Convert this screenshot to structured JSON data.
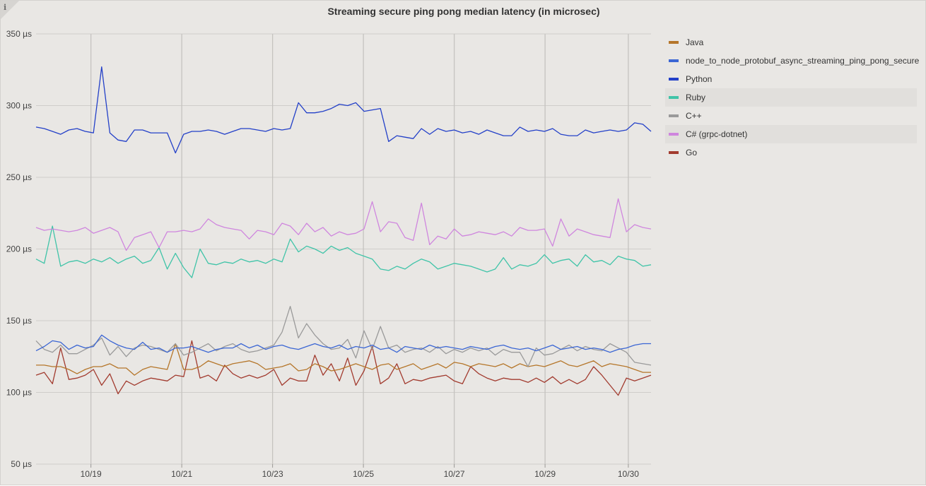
{
  "chart_data": {
    "type": "line",
    "title": "Streaming secure ping pong median latency (in microsec)",
    "ylim": [
      50,
      350
    ],
    "y_ticks": [
      "350 µs",
      "300 µs",
      "250 µs",
      "200 µs",
      "150 µs",
      "100 µs",
      "50 µs"
    ],
    "y_tick_values": [
      350,
      300,
      250,
      200,
      150,
      100,
      50
    ],
    "x_range": [
      "2022-10-17T19:00",
      "2022-10-31T08:00"
    ],
    "x_ticks": [
      "10/19",
      "10/21",
      "10/23",
      "10/25",
      "10/27",
      "10/29",
      "10/30"
    ],
    "x_tick_dates": [
      "2022-10-19",
      "2022-10-21",
      "2022-10-23",
      "2022-10-25",
      "2022-10-27",
      "2022-10-29",
      "2022-10-30T20:00"
    ],
    "x": [
      "2022-10-17T19:00",
      "2022-10-17T23:20",
      "2022-10-18T03:40",
      "2022-10-18T08:00",
      "2022-10-18T12:20",
      "2022-10-18T16:40",
      "2022-10-18T21:00",
      "2022-10-19T01:20",
      "2022-10-19T05:40",
      "2022-10-19T10:00",
      "2022-10-19T14:20",
      "2022-10-19T18:40",
      "2022-10-19T23:00",
      "2022-10-20T03:20",
      "2022-10-20T07:40",
      "2022-10-20T12:00",
      "2022-10-20T16:20",
      "2022-10-20T20:40",
      "2022-10-21T01:00",
      "2022-10-21T05:20",
      "2022-10-21T09:40",
      "2022-10-21T14:00",
      "2022-10-21T18:20",
      "2022-10-21T22:40",
      "2022-10-22T03:00",
      "2022-10-22T07:20",
      "2022-10-22T11:40",
      "2022-10-22T16:00",
      "2022-10-22T20:20",
      "2022-10-23T00:40",
      "2022-10-23T05:00",
      "2022-10-23T09:20",
      "2022-10-23T13:40",
      "2022-10-23T18:00",
      "2022-10-23T22:20",
      "2022-10-24T02:40",
      "2022-10-24T07:00",
      "2022-10-24T11:20",
      "2022-10-24T15:40",
      "2022-10-24T20:00",
      "2022-10-25T00:20",
      "2022-10-25T04:40",
      "2022-10-25T09:00",
      "2022-10-25T13:20",
      "2022-10-25T17:40",
      "2022-10-25T22:00",
      "2022-10-26T02:20",
      "2022-10-26T06:40",
      "2022-10-26T11:00",
      "2022-10-26T15:20",
      "2022-10-26T19:40",
      "2022-10-27T00:00",
      "2022-10-27T04:20",
      "2022-10-27T08:40",
      "2022-10-27T13:00",
      "2022-10-27T17:20",
      "2022-10-27T21:40",
      "2022-10-28T02:00",
      "2022-10-28T06:20",
      "2022-10-28T10:40",
      "2022-10-28T15:00",
      "2022-10-28T19:20",
      "2022-10-28T23:40",
      "2022-10-29T04:00",
      "2022-10-29T08:20",
      "2022-10-29T12:40",
      "2022-10-29T17:00",
      "2022-10-29T21:20",
      "2022-10-30T01:40",
      "2022-10-30T06:00",
      "2022-10-30T10:20",
      "2022-10-30T14:40",
      "2022-10-30T19:00",
      "2022-10-30T23:20",
      "2022-10-31T03:40",
      "2022-10-31T08:00"
    ],
    "series": [
      {
        "name": "Java",
        "color": "#b5762a",
        "values": [
          119,
          119,
          118,
          118,
          116,
          113,
          116,
          118,
          118,
          120,
          117,
          117,
          112,
          116,
          118,
          117,
          116,
          134,
          116,
          116,
          118,
          122,
          120,
          118,
          120,
          121,
          122,
          120,
          116,
          117,
          118,
          120,
          115,
          116,
          120,
          118,
          115,
          116,
          118,
          120,
          118,
          116,
          119,
          120,
          116,
          118,
          120,
          116,
          118,
          120,
          117,
          121,
          120,
          118,
          120,
          119,
          118,
          120,
          117,
          120,
          118,
          119,
          118,
          120,
          122,
          119,
          118,
          120,
          122,
          118,
          120,
          119,
          118,
          116,
          114,
          114
        ]
      },
      {
        "name": "node_to_node_protobuf_async_streaming_ping_pong_secure",
        "color": "#3b66d4",
        "values": [
          129,
          132,
          136,
          135,
          130,
          133,
          131,
          132,
          140,
          136,
          133,
          131,
          130,
          135,
          130,
          131,
          128,
          131,
          131,
          132,
          130,
          128,
          130,
          131,
          131,
          134,
          131,
          133,
          130,
          132,
          133,
          131,
          130,
          132,
          134,
          132,
          131,
          133,
          130,
          132,
          131,
          133,
          130,
          131,
          128,
          132,
          131,
          130,
          133,
          131,
          132,
          131,
          130,
          132,
          131,
          130,
          132,
          133,
          131,
          130,
          131,
          129,
          131,
          133,
          130,
          131,
          132,
          130,
          131,
          130,
          128,
          130,
          131,
          133,
          134,
          134
        ]
      },
      {
        "name": "Python",
        "color": "#2340c8",
        "values": [
          285,
          284,
          282,
          280,
          283,
          284,
          282,
          281,
          327,
          281,
          276,
          275,
          283,
          283,
          281,
          281,
          281,
          267,
          280,
          282,
          282,
          283,
          282,
          280,
          282,
          284,
          284,
          283,
          282,
          284,
          283,
          284,
          302,
          295,
          295,
          296,
          298,
          301,
          300,
          302,
          296,
          297,
          298,
          275,
          279,
          278,
          277,
          284,
          280,
          284,
          282,
          283,
          281,
          282,
          280,
          283,
          281,
          279,
          279,
          285,
          282,
          283,
          282,
          284,
          280,
          279,
          279,
          283,
          281,
          282,
          283,
          282,
          283,
          288,
          287,
          282
        ]
      },
      {
        "name": "Ruby",
        "color": "#40c4a8",
        "values": [
          193,
          190,
          216,
          188,
          191,
          192,
          190,
          193,
          191,
          194,
          190,
          193,
          195,
          190,
          192,
          201,
          186,
          197,
          187,
          180,
          200,
          190,
          189,
          191,
          190,
          193,
          191,
          192,
          190,
          193,
          191,
          207,
          198,
          202,
          200,
          197,
          202,
          199,
          201,
          197,
          195,
          193,
          186,
          185,
          188,
          186,
          190,
          193,
          191,
          186,
          188,
          190,
          189,
          188,
          186,
          184,
          186,
          194,
          186,
          189,
          188,
          190,
          196,
          190,
          192,
          193,
          188,
          196,
          191,
          192,
          189,
          195,
          193,
          192,
          188,
          189
        ]
      },
      {
        "name": "C++",
        "color": "#9a9a9a",
        "values": [
          136,
          130,
          128,
          133,
          127,
          127,
          130,
          133,
          138,
          126,
          132,
          125,
          131,
          133,
          132,
          130,
          128,
          134,
          126,
          128,
          131,
          134,
          129,
          132,
          134,
          130,
          128,
          129,
          131,
          133,
          142,
          160,
          138,
          148,
          140,
          134,
          130,
          131,
          137,
          124,
          143,
          130,
          146,
          131,
          133,
          128,
          130,
          131,
          128,
          132,
          127,
          130,
          128,
          131,
          129,
          131,
          126,
          130,
          128,
          128,
          118,
          131,
          126,
          127,
          130,
          133,
          129,
          132,
          130,
          129,
          134,
          131,
          128,
          121,
          120,
          119
        ]
      },
      {
        "name": "C# (grpc-dotnet)",
        "color": "#cf86de",
        "values": [
          215,
          213,
          214,
          213,
          212,
          213,
          215,
          211,
          213,
          215,
          212,
          199,
          208,
          210,
          212,
          201,
          212,
          212,
          213,
          212,
          214,
          221,
          217,
          215,
          214,
          213,
          207,
          213,
          212,
          210,
          218,
          216,
          210,
          218,
          212,
          215,
          209,
          212,
          210,
          211,
          214,
          233,
          212,
          219,
          218,
          208,
          206,
          232,
          203,
          209,
          207,
          214,
          209,
          210,
          212,
          211,
          210,
          212,
          209,
          215,
          213,
          213,
          214,
          202,
          221,
          209,
          214,
          212,
          210,
          209,
          208,
          235,
          212,
          217,
          215,
          214
        ]
      },
      {
        "name": "Go",
        "color": "#a23b2f",
        "values": [
          112,
          114,
          106,
          131,
          109,
          110,
          112,
          116,
          105,
          113,
          99,
          108,
          105,
          108,
          110,
          109,
          108,
          112,
          111,
          136,
          110,
          112,
          108,
          119,
          113,
          110,
          112,
          110,
          112,
          116,
          105,
          110,
          108,
          108,
          126,
          112,
          120,
          108,
          124,
          105,
          115,
          132,
          106,
          110,
          120,
          106,
          109,
          108,
          110,
          111,
          112,
          108,
          106,
          118,
          113,
          110,
          108,
          110,
          109,
          109,
          107,
          110,
          107,
          111,
          106,
          109,
          106,
          109,
          118,
          112,
          105,
          98,
          110,
          108,
          110,
          112
        ]
      }
    ],
    "legend_position": "right",
    "grid": true
  }
}
